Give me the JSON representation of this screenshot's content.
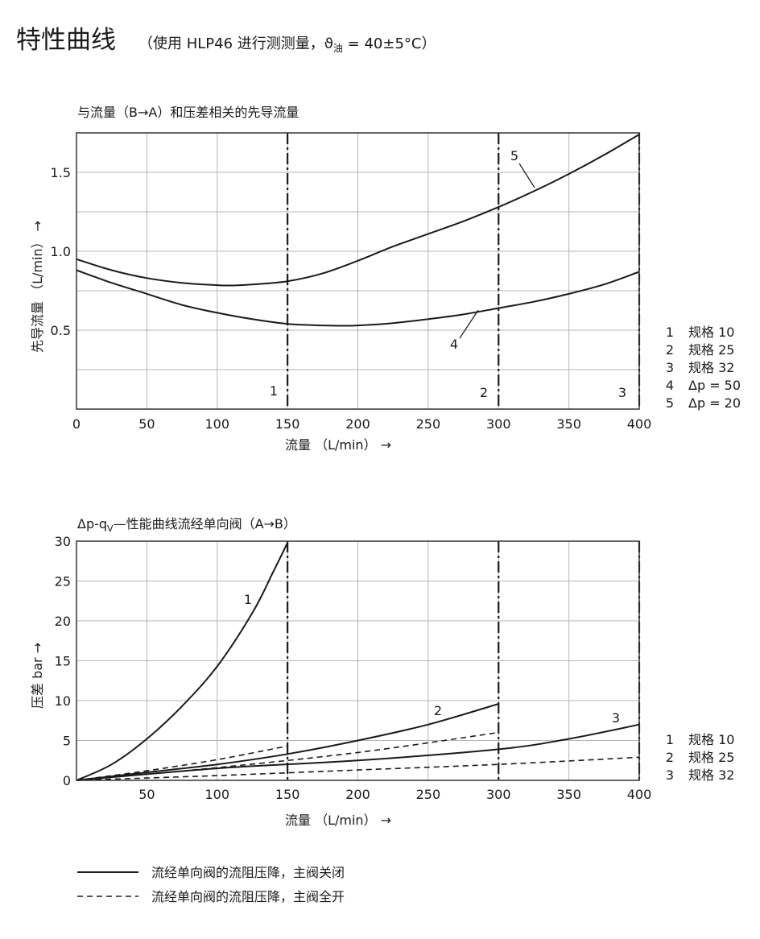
{
  "header": {
    "title": "特性曲线",
    "subtitle_prefix": "（使用 HLP46 进行测测量，",
    "theta": "ϑ",
    "theta_sub": "油",
    "subtitle_suffix": " = 40±5°C）"
  },
  "chart_data": [
    {
      "type": "line",
      "title": "与流量（B→A）和压差相关的先导流量",
      "xlabel": "流量 （L/min） →",
      "ylabel": "先导流量 （L/min） →",
      "xlim": [
        0,
        400
      ],
      "ylim": [
        0,
        1.75
      ],
      "xticks": [
        "0",
        "50",
        "100",
        "150",
        "200",
        "250",
        "300",
        "350",
        "400"
      ],
      "yticks": [
        {
          "value": 0.5,
          "label": "0.5"
        },
        {
          "value": 1.0,
          "label": "1.0"
        },
        {
          "value": 1.5,
          "label": "1.5"
        }
      ],
      "grid": true,
      "series": [
        {
          "name": "5",
          "x": [
            0,
            25,
            50,
            75,
            100,
            110,
            125,
            150,
            175,
            200,
            225,
            250,
            275,
            300,
            325,
            350,
            375,
            400
          ],
          "y": [
            0.95,
            0.88,
            0.83,
            0.8,
            0.785,
            0.783,
            0.79,
            0.81,
            0.86,
            0.94,
            1.03,
            1.11,
            1.19,
            1.28,
            1.38,
            1.49,
            1.61,
            1.74
          ]
        },
        {
          "name": "4",
          "x": [
            0,
            25,
            50,
            75,
            100,
            125,
            150,
            175,
            190,
            200,
            225,
            250,
            275,
            300,
            325,
            350,
            375,
            400
          ],
          "y": [
            0.88,
            0.8,
            0.73,
            0.66,
            0.61,
            0.57,
            0.54,
            0.53,
            0.528,
            0.53,
            0.545,
            0.57,
            0.6,
            0.64,
            0.68,
            0.73,
            0.79,
            0.87
          ]
        }
      ],
      "vlines": [
        {
          "x": 150,
          "label": "1"
        },
        {
          "x": 300,
          "label": "2"
        },
        {
          "x": 400,
          "label": "3"
        }
      ],
      "curve_labels": [
        "5",
        "4"
      ],
      "legend": [
        {
          "key": "1",
          "text": "规格 10"
        },
        {
          "key": "2",
          "text": "规格 25"
        },
        {
          "key": "3",
          "text": "规格 32"
        },
        {
          "key": "4",
          "text": "Δp = 50"
        },
        {
          "key": "5",
          "text": "Δp = 20"
        }
      ]
    },
    {
      "type": "line",
      "title_main": "Δp-q",
      "title_sub": "V",
      "title_rest": "—性能曲线流经单向阀（A→B）",
      "xlabel": "流量 （L/min） →",
      "ylabel": "压差 bar →",
      "xlim": [
        0,
        400
      ],
      "ylim": [
        0,
        30
      ],
      "xticks": [
        "50",
        "100",
        "150",
        "200",
        "250",
        "300",
        "350",
        "400"
      ],
      "yticks": [
        "0",
        "5",
        "10",
        "15",
        "20",
        "25",
        "30"
      ],
      "grid": true,
      "series": [
        {
          "name": "1",
          "style": "solid",
          "x": [
            0,
            25,
            50,
            75,
            100,
            125,
            140,
            150
          ],
          "y": [
            0,
            2.0,
            5.2,
            9.3,
            14.3,
            21.0,
            26.2,
            29.8
          ]
        },
        {
          "name": "1",
          "style": "dashed",
          "x": [
            0,
            50,
            100,
            150
          ],
          "y": [
            0,
            1.2,
            2.6,
            4.3
          ]
        },
        {
          "name": "2",
          "style": "solid",
          "x": [
            0,
            50,
            100,
            150,
            200,
            250,
            300
          ],
          "y": [
            0,
            1.0,
            2.0,
            3.3,
            5.0,
            7.0,
            9.6
          ]
        },
        {
          "name": "2",
          "style": "dashed",
          "x": [
            0,
            100,
            200,
            300
          ],
          "y": [
            0,
            1.6,
            3.5,
            6.0
          ]
        },
        {
          "name": "3",
          "style": "solid",
          "x": [
            0,
            100,
            200,
            300,
            350,
            400
          ],
          "y": [
            0,
            1.5,
            2.5,
            3.9,
            5.2,
            7.0
          ]
        },
        {
          "name": "3",
          "style": "dashed",
          "x": [
            0,
            100,
            200,
            300,
            400
          ],
          "y": [
            0,
            0.6,
            1.3,
            2.0,
            2.9
          ]
        }
      ],
      "vlines": [
        {
          "x": 150
        },
        {
          "x": 300
        },
        {
          "x": 400
        }
      ],
      "curve_labels": [
        "1",
        "2",
        "3"
      ],
      "legend": [
        {
          "key": "1",
          "text": "规格 10"
        },
        {
          "key": "2",
          "text": "规格 25"
        },
        {
          "key": "3",
          "text": "规格 32"
        }
      ]
    }
  ],
  "line_legend": [
    {
      "style": "solid",
      "text": "流经单向阀的流阻压降，主阀关闭"
    },
    {
      "style": "dashed",
      "text": "流经单向阀的流阻压降，主阀全开"
    }
  ]
}
